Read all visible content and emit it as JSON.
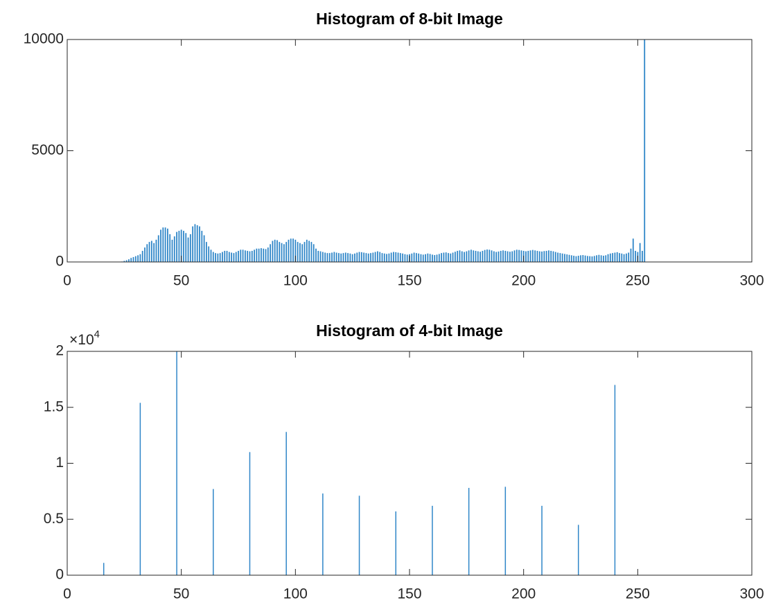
{
  "chart_data": [
    {
      "type": "bar",
      "title": "Histogram of 8-bit Image",
      "color": "#2f86c8",
      "x": [
        20,
        21,
        22,
        23,
        24,
        25,
        26,
        27,
        28,
        29,
        30,
        31,
        32,
        33,
        34,
        35,
        36,
        37,
        38,
        39,
        40,
        41,
        42,
        43,
        44,
        45,
        46,
        47,
        48,
        49,
        50,
        51,
        52,
        53,
        54,
        55,
        56,
        57,
        58,
        59,
        60,
        61,
        62,
        63,
        64,
        65,
        66,
        67,
        68,
        69,
        70,
        71,
        72,
        73,
        74,
        75,
        76,
        77,
        78,
        79,
        80,
        81,
        82,
        83,
        84,
        85,
        86,
        87,
        88,
        89,
        90,
        91,
        92,
        93,
        94,
        95,
        96,
        97,
        98,
        99,
        100,
        101,
        102,
        103,
        104,
        105,
        106,
        107,
        108,
        109,
        110,
        111,
        112,
        113,
        114,
        115,
        116,
        117,
        118,
        119,
        120,
        121,
        122,
        123,
        124,
        125,
        126,
        127,
        128,
        129,
        130,
        131,
        132,
        133,
        134,
        135,
        136,
        137,
        138,
        139,
        140,
        141,
        142,
        143,
        144,
        145,
        146,
        147,
        148,
        149,
        150,
        151,
        152,
        153,
        154,
        155,
        156,
        157,
        158,
        159,
        160,
        161,
        162,
        163,
        164,
        165,
        166,
        167,
        168,
        169,
        170,
        171,
        172,
        173,
        174,
        175,
        176,
        177,
        178,
        179,
        180,
        181,
        182,
        183,
        184,
        185,
        186,
        187,
        188,
        189,
        190,
        191,
        192,
        193,
        194,
        195,
        196,
        197,
        198,
        199,
        200,
        201,
        202,
        203,
        204,
        205,
        206,
        207,
        208,
        209,
        210,
        211,
        212,
        213,
        214,
        215,
        216,
        217,
        218,
        219,
        220,
        221,
        222,
        223,
        224,
        225,
        226,
        227,
        228,
        229,
        230,
        231,
        232,
        233,
        234,
        235,
        236,
        237,
        238,
        239,
        240,
        241,
        242,
        243,
        244,
        245,
        246,
        247,
        248,
        249,
        250,
        251,
        252,
        253,
        254,
        255
      ],
      "values": [
        0,
        0,
        0,
        0,
        20,
        50,
        80,
        120,
        180,
        220,
        260,
        300,
        350,
        500,
        650,
        800,
        900,
        950,
        850,
        1000,
        1200,
        1450,
        1550,
        1550,
        1500,
        1250,
        1000,
        1150,
        1350,
        1400,
        1450,
        1400,
        1300,
        1100,
        1250,
        1600,
        1700,
        1650,
        1600,
        1400,
        1200,
        900,
        700,
        550,
        450,
        400,
        380,
        400,
        450,
        500,
        500,
        450,
        420,
        400,
        450,
        500,
        550,
        550,
        520,
        500,
        480,
        500,
        550,
        600,
        600,
        620,
        600,
        580,
        650,
        800,
        950,
        1000,
        980,
        900,
        850,
        800,
        900,
        1000,
        1050,
        1050,
        1000,
        900,
        850,
        800,
        900,
        1000,
        950,
        900,
        800,
        600,
        500,
        480,
        450,
        420,
        400,
        400,
        420,
        450,
        420,
        400,
        380,
        400,
        420,
        400,
        380,
        350,
        380,
        420,
        450,
        440,
        420,
        400,
        380,
        400,
        420,
        450,
        480,
        450,
        400,
        380,
        360,
        380,
        420,
        450,
        440,
        420,
        400,
        380,
        350,
        330,
        350,
        380,
        420,
        400,
        380,
        350,
        330,
        350,
        380,
        360,
        330,
        310,
        330,
        360,
        400,
        420,
        430,
        400,
        380,
        420,
        460,
        500,
        520,
        480,
        450,
        480,
        520,
        550,
        520,
        500,
        480,
        460,
        500,
        540,
        560,
        550,
        520,
        480,
        450,
        470,
        500,
        520,
        500,
        480,
        460,
        480,
        520,
        550,
        540,
        520,
        500,
        480,
        500,
        520,
        540,
        520,
        500,
        480,
        470,
        490,
        500,
        520,
        500,
        480,
        450,
        420,
        400,
        380,
        360,
        340,
        320,
        300,
        280,
        260,
        280,
        300,
        310,
        290,
        270,
        260,
        250,
        270,
        300,
        320,
        300,
        280,
        300,
        350,
        380,
        400,
        420,
        440,
        400,
        380,
        350,
        380,
        420,
        600,
        1050,
        500,
        450,
        850,
        500,
        10000,
        0,
        0
      ],
      "xlim": [
        0,
        300
      ],
      "xticks": [
        0,
        50,
        100,
        150,
        200,
        250,
        300
      ],
      "ylim": [
        0,
        10000
      ],
      "yticks": [
        0,
        5000,
        10000
      ]
    },
    {
      "type": "bar",
      "title": "Histogram of 4-bit Image",
      "color": "#2f86c8",
      "x": [
        16,
        32,
        48,
        64,
        80,
        96,
        112,
        128,
        144,
        160,
        176,
        192,
        208,
        224,
        240
      ],
      "values": [
        0.11,
        1.54,
        2.0,
        0.77,
        1.1,
        1.28,
        0.73,
        0.71,
        0.57,
        0.62,
        0.78,
        0.79,
        0.62,
        0.45,
        1.7
      ],
      "xlim": [
        0,
        300
      ],
      "xticks": [
        0,
        50,
        100,
        150,
        200,
        250,
        300
      ],
      "ylim": [
        0,
        2
      ],
      "yticks": [
        0,
        0.5,
        1,
        1.5,
        2
      ],
      "y_multiplier": {
        "base": "×10",
        "exponent": "4"
      }
    }
  ]
}
